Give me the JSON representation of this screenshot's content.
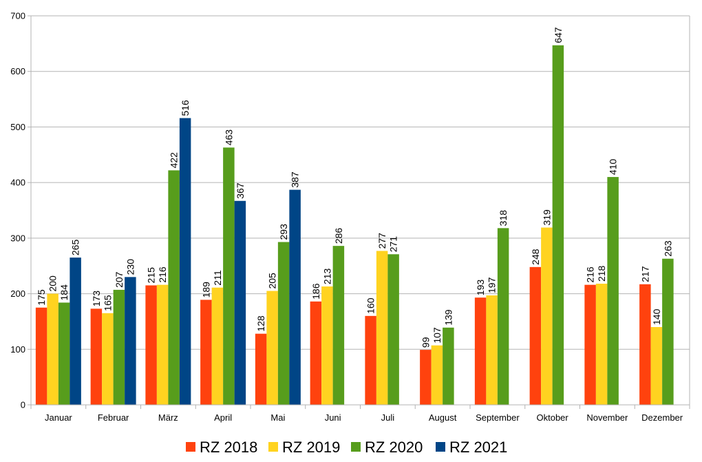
{
  "chart_data": {
    "type": "bar",
    "title": "",
    "xlabel": "",
    "ylabel": "",
    "ylim": [
      0,
      700
    ],
    "yticks": [
      0,
      100,
      200,
      300,
      400,
      500,
      600,
      700
    ],
    "grid": true,
    "legend_position": "bottom",
    "categories": [
      "Januar",
      "Februar",
      "März",
      "April",
      "Mai",
      "Juni",
      "Juli",
      "August",
      "September",
      "Oktober",
      "November",
      "Dezember"
    ],
    "series": [
      {
        "name": "RZ 2018",
        "color": "#ff420e",
        "values": [
          175,
          173,
          215,
          189,
          128,
          186,
          160,
          99,
          193,
          248,
          216,
          217
        ]
      },
      {
        "name": "RZ 2019",
        "color": "#ffd320",
        "values": [
          200,
          165,
          216,
          211,
          205,
          213,
          277,
          107,
          197,
          319,
          218,
          140
        ]
      },
      {
        "name": "RZ 2020",
        "color": "#579d1c",
        "values": [
          184,
          207,
          422,
          463,
          293,
          286,
          271,
          139,
          318,
          647,
          410,
          263
        ]
      },
      {
        "name": "RZ 2021",
        "color": "#004586",
        "values": [
          265,
          230,
          516,
          367,
          387,
          null,
          null,
          null,
          null,
          null,
          null,
          null
        ]
      }
    ]
  }
}
